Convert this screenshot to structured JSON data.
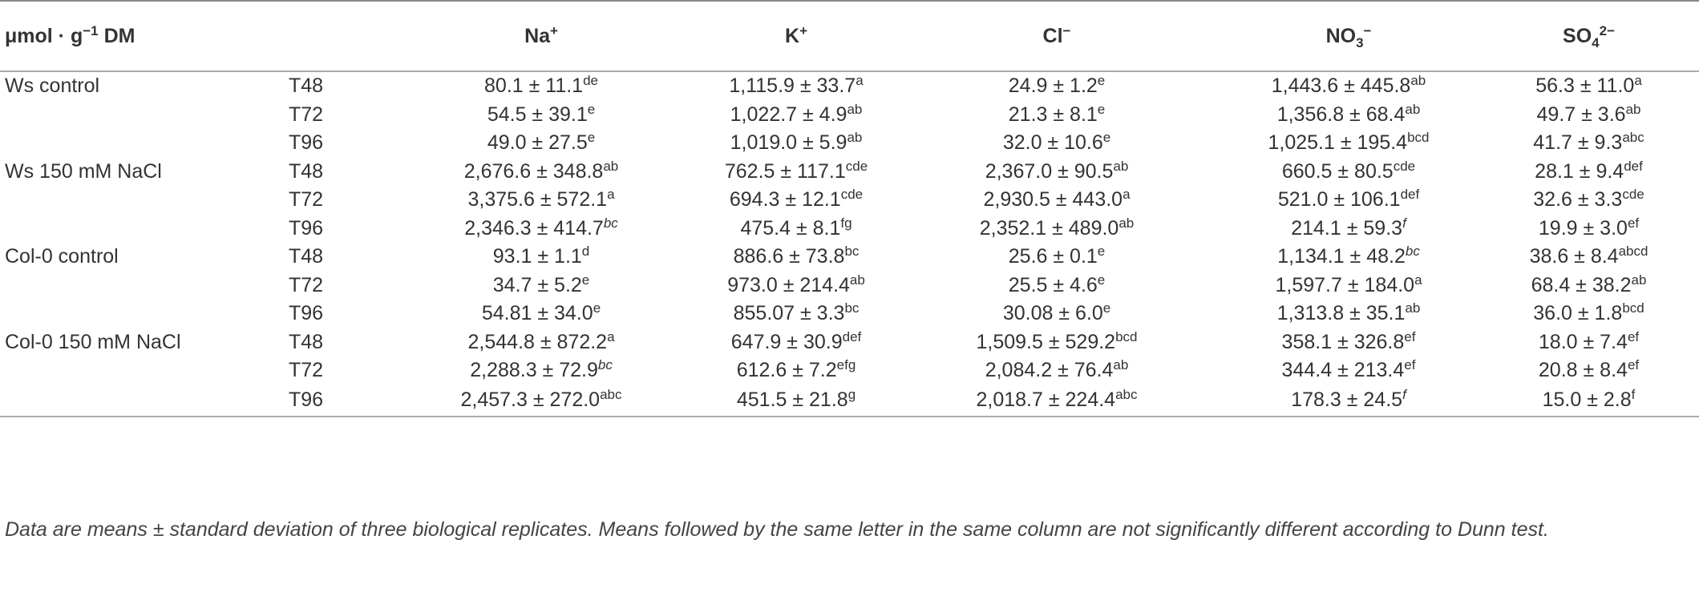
{
  "table": {
    "header": [
      [
        {
          "text": "μmol · g"
        },
        {
          "text": "−1",
          "pos": "sup"
        },
        {
          "text": " DM"
        }
      ],
      [
        {
          "text": "Na"
        },
        {
          "text": "+",
          "pos": "sup"
        }
      ],
      [
        {
          "text": "K"
        },
        {
          "text": "+",
          "pos": "sup"
        }
      ],
      [
        {
          "text": "Cl"
        },
        {
          "text": "−",
          "pos": "sup"
        }
      ],
      [
        {
          "text": "NO"
        },
        {
          "text": "3",
          "pos": "sub"
        },
        {
          "text": "−",
          "pos": "sup"
        }
      ],
      [
        {
          "text": "SO"
        },
        {
          "text": "4",
          "pos": "sub"
        },
        {
          "text": "2−",
          "pos": "sup"
        }
      ]
    ],
    "groups": [
      {
        "label": "Ws control",
        "rows": [
          {
            "time": "T48",
            "cells": [
              {
                "text": "80.1 ± 11.1",
                "sup": "de"
              },
              {
                "text": "1,115.9 ± 33.7",
                "sup": "a"
              },
              {
                "text": "24.9 ± 1.2",
                "sup": "e"
              },
              {
                "text": "1,443.6 ± 445.8",
                "sup": "ab"
              },
              {
                "text": "56.3 ± 11.0",
                "sup": "a"
              }
            ]
          },
          {
            "time": "T72",
            "cells": [
              {
                "text": "54.5 ± 39.1",
                "sup": "e"
              },
              {
                "text": "1,022.7 ± 4.9",
                "sup": "ab"
              },
              {
                "text": "21.3 ± 8.1",
                "sup": "e"
              },
              {
                "text": "1,356.8 ± 68.4",
                "sup": "ab"
              },
              {
                "text": "49.7 ± 3.6",
                "sup": "ab"
              }
            ]
          },
          {
            "time": "T96",
            "cells": [
              {
                "text": "49.0 ± 27.5",
                "sup": "e"
              },
              {
                "text": "1,019.0 ± 5.9",
                "sup": "ab"
              },
              {
                "text": "32.0 ± 10.6",
                "sup": "e"
              },
              {
                "text": "1,025.1 ± 195.4",
                "sup": "bcd"
              },
              {
                "text": "41.7 ± 9.3",
                "sup": "abc"
              }
            ]
          }
        ]
      },
      {
        "label": "Ws 150 mM NaCl",
        "rows": [
          {
            "time": "T48",
            "cells": [
              {
                "text": "2,676.6 ± 348.8",
                "sup": "ab"
              },
              {
                "text": "762.5 ± 117.1",
                "sup": "cde"
              },
              {
                "text": "2,367.0 ± 90.5",
                "sup": "ab"
              },
              {
                "text": "660.5 ± 80.5",
                "sup": "cde"
              },
              {
                "text": "28.1 ± 9.4",
                "sup": "def"
              }
            ]
          },
          {
            "time": "T72",
            "cells": [
              {
                "text": "3,375.6 ± 572.1",
                "sup": "a"
              },
              {
                "text": "694.3 ± 12.1",
                "sup": "cde"
              },
              {
                "text": "2,930.5 ± 443.0",
                "sup": "a"
              },
              {
                "text": "521.0 ± 106.1",
                "sup": "def"
              },
              {
                "text": "32.6 ± 3.3",
                "sup": "cde"
              }
            ]
          },
          {
            "time": "T96",
            "cells": [
              {
                "text": "2,346.3 ± 414.7",
                "sup": "bc",
                "italic": true
              },
              {
                "text": "475.4 ± 8.1",
                "sup": "fg"
              },
              {
                "text": "2,352.1 ± 489.0",
                "sup": "ab"
              },
              {
                "text": "214.1 ± 59.3",
                "sup": "f",
                "italic": true
              },
              {
                "text": "19.9 ± 3.0",
                "sup": "ef"
              }
            ]
          }
        ]
      },
      {
        "label": "Col-0 control",
        "rows": [
          {
            "time": "T48",
            "cells": [
              {
                "text": "93.1 ± 1.1",
                "sup": "d"
              },
              {
                "text": "886.6 ± 73.8",
                "sup": "bc"
              },
              {
                "text": "25.6 ± 0.1",
                "sup": "e"
              },
              {
                "text": "1,134.1 ± 48.2",
                "sup": "bc",
                "italic": true
              },
              {
                "text": "38.6 ± 8.4",
                "sup": "abcd"
              }
            ]
          },
          {
            "time": "T72",
            "cells": [
              {
                "text": "34.7 ± 5.2",
                "sup": "e"
              },
              {
                "text": "973.0 ± 214.4",
                "sup": "ab"
              },
              {
                "text": "25.5 ± 4.6",
                "sup": "e"
              },
              {
                "text": "1,597.7 ± 184.0",
                "sup": "a"
              },
              {
                "text": "68.4 ± 38.2",
                "sup": "ab"
              }
            ]
          },
          {
            "time": "T96",
            "cells": [
              {
                "text": "54.81 ± 34.0",
                "sup": "e"
              },
              {
                "text": "855.07 ± 3.3",
                "sup": "bc"
              },
              {
                "text": "30.08 ± 6.0",
                "sup": "e"
              },
              {
                "text": "1,313.8 ± 35.1",
                "sup": "ab"
              },
              {
                "text": "36.0 ± 1.8",
                "sup": "bcd"
              }
            ]
          }
        ]
      },
      {
        "label": "Col-0 150 mM NaCl",
        "rows": [
          {
            "time": "T48",
            "cells": [
              {
                "text": "2,544.8 ± 872.2",
                "sup": "a"
              },
              {
                "text": "647.9 ± 30.9",
                "sup": "def"
              },
              {
                "text": "1,509.5 ± 529.2",
                "sup": "bcd"
              },
              {
                "text": "358.1 ± 326.8",
                "sup": "ef"
              },
              {
                "text": "18.0 ± 7.4",
                "sup": "ef"
              }
            ]
          },
          {
            "time": "T72",
            "cells": [
              {
                "text": "2,288.3 ± 72.9",
                "sup": "bc",
                "italic": true
              },
              {
                "text": "612.6 ± 7.2",
                "sup": "efg"
              },
              {
                "text": "2,084.2 ± 76.4",
                "sup": "ab"
              },
              {
                "text": "344.4 ± 213.4",
                "sup": "ef"
              },
              {
                "text": "20.8 ± 8.4",
                "sup": "ef"
              }
            ]
          },
          {
            "time": "T96",
            "cells": [
              {
                "text": "2,457.3 ± 272.0",
                "sup": "abc"
              },
              {
                "text": "451.5 ± 21.8",
                "sup": "g"
              },
              {
                "text": "2,018.7 ± 224.4",
                "sup": "abc"
              },
              {
                "text": "178.3 ± 24.5",
                "sup": "f",
                "italic": true
              },
              {
                "text": "15.0 ± 2.8",
                "sup": "f"
              }
            ]
          }
        ]
      }
    ],
    "footnote": "Data are means ± standard deviation of three biological replicates. Means followed by the same letter in the same column are not significantly different according to Dunn test."
  }
}
